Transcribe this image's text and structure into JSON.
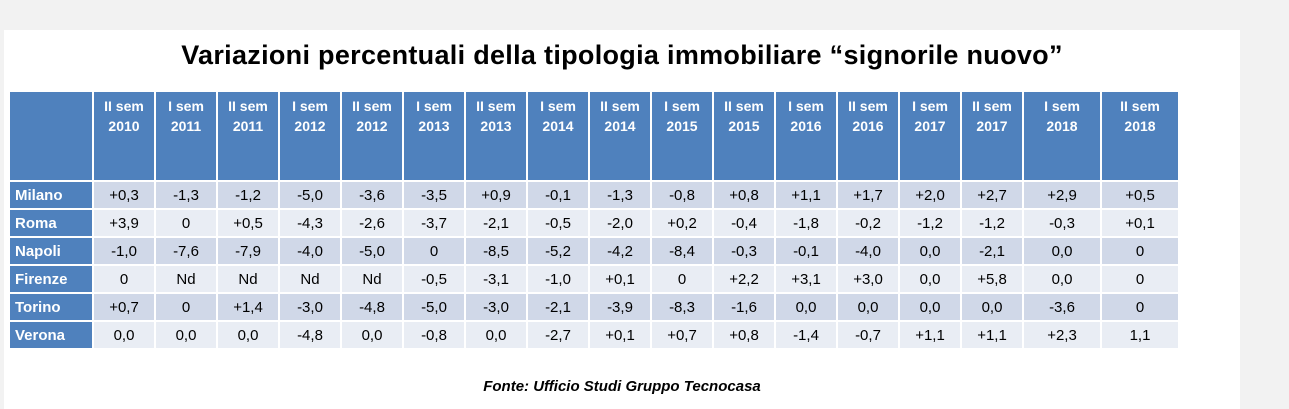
{
  "title": "Variazioni percentuali della tipologia immobiliare “signorile nuovo”",
  "columns": [
    {
      "sem": "II sem",
      "year": "2010"
    },
    {
      "sem": "I sem",
      "year": "2011"
    },
    {
      "sem": "II sem",
      "year": "2011"
    },
    {
      "sem": "I sem",
      "year": "2012"
    },
    {
      "sem": "II sem",
      "year": "2012"
    },
    {
      "sem": "I sem",
      "year": "2013"
    },
    {
      "sem": "II sem",
      "year": "2013"
    },
    {
      "sem": "I sem",
      "year": "2014"
    },
    {
      "sem": "II sem",
      "year": "2014"
    },
    {
      "sem": "I sem",
      "year": "2015"
    },
    {
      "sem": "II sem",
      "year": "2015"
    },
    {
      "sem": "I sem",
      "year": "2016"
    },
    {
      "sem": "II sem",
      "year": "2016"
    },
    {
      "sem": "I sem",
      "year": "2017"
    },
    {
      "sem": "II sem",
      "year": "2017"
    },
    {
      "sem": "I sem",
      "year": "2018"
    },
    {
      "sem": "II sem",
      "year": "2018"
    }
  ],
  "rows": [
    {
      "city": "Milano",
      "values": [
        "+0,3",
        "-1,3",
        "-1,2",
        "-5,0",
        "-3,6",
        "-3,5",
        "+0,9",
        "-0,1",
        "-1,3",
        "-0,8",
        "+0,8",
        "+1,1",
        "+1,7",
        "+2,0",
        "+2,7",
        "+2,9",
        "+0,5"
      ]
    },
    {
      "city": "Roma",
      "values": [
        "+3,9",
        "0",
        "+0,5",
        "-4,3",
        "-2,6",
        "-3,7",
        "-2,1",
        "-0,5",
        "-2,0",
        "+0,2",
        "-0,4",
        "-1,8",
        "-0,2",
        "-1,2",
        "-1,2",
        "-0,3",
        "+0,1"
      ]
    },
    {
      "city": "Napoli",
      "values": [
        "-1,0",
        "-7,6",
        "-7,9",
        "-4,0",
        "-5,0",
        "0",
        "-8,5",
        "-5,2",
        "-4,2",
        "-8,4",
        "-0,3",
        "-0,1",
        "-4,0",
        "0,0",
        "-2,1",
        "0,0",
        "0"
      ]
    },
    {
      "city": "Firenze",
      "values": [
        "0",
        "Nd",
        "Nd",
        "Nd",
        "Nd",
        "-0,5",
        "-3,1",
        "-1,0",
        "+0,1",
        "0",
        "+2,2",
        "+3,1",
        "+3,0",
        "0,0",
        "+5,8",
        "0,0",
        "0"
      ]
    },
    {
      "city": "Torino",
      "values": [
        "+0,7",
        "0",
        "+1,4",
        "-3,0",
        "-4,8",
        "-5,0",
        "-3,0",
        "-2,1",
        "-3,9",
        "-8,3",
        "-1,6",
        "0,0",
        "0,0",
        "0,0",
        "0,0",
        "-3,6",
        "0"
      ]
    },
    {
      "city": "Verona",
      "values": [
        "0,0",
        "0,0",
        "0,0",
        "-4,8",
        "0,0",
        "-0,8",
        "0,0",
        "-2,7",
        "+0,1",
        "+0,7",
        "+0,8",
        "-1,4",
        "-0,7",
        "+1,1",
        "+1,1",
        "+2,3",
        "1,1"
      ]
    }
  ],
  "source": "Fonte: Ufficio Studi Gruppo Tecnocasa",
  "colors": {
    "header": "#4f81bd",
    "row_odd": "#d0d8e8",
    "row_even": "#e9edf4"
  }
}
